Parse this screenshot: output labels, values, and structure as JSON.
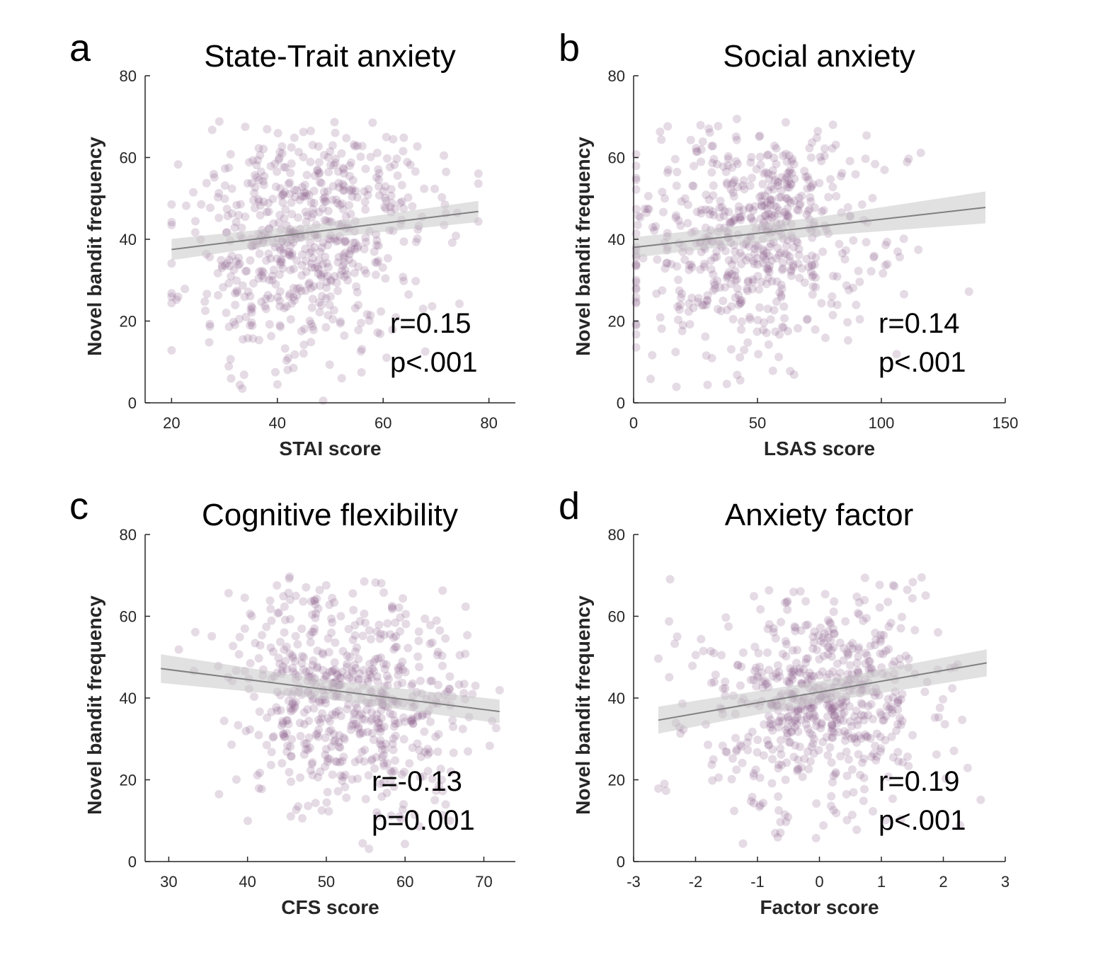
{
  "chart_data": [
    {
      "type": "scatter",
      "panel": "a",
      "title": "State-Trait anxiety",
      "xlabel": "STAI score",
      "ylabel": "Novel bandit frequency",
      "xlim": [
        15,
        85
      ],
      "ylim": [
        0,
        80
      ],
      "xticks": [
        20,
        40,
        60,
        80
      ],
      "yticks": [
        0,
        20,
        40,
        60,
        80
      ],
      "r_text": "r=0.15",
      "p_text": "p<.001",
      "fit": {
        "x": [
          20,
          78
        ],
        "y": [
          37.5,
          46.8
        ],
        "ci_halfwidth": [
          2.6,
          2.6
        ],
        "ci_mid": 0.7
      },
      "color": "#8a5a88",
      "points": {
        "n": 620,
        "x_mean": 46,
        "x_sd": 12,
        "x_range": [
          20,
          78
        ],
        "y_mean": 41,
        "y_sd": 14,
        "y_range": [
          0.5,
          70
        ],
        "slope": 0.16,
        "seed": 11
      }
    },
    {
      "type": "scatter",
      "panel": "b",
      "title": "Social anxiety",
      "xlabel": "LSAS score",
      "ylabel": "Novel bandit frequency",
      "xlim": [
        0,
        150
      ],
      "ylim": [
        0,
        80
      ],
      "xticks": [
        0,
        50,
        100,
        150
      ],
      "yticks": [
        0,
        20,
        40,
        60,
        80
      ],
      "r_text": "r=0.14",
      "p_text": "p<.001",
      "fit": {
        "x": [
          0,
          142
        ],
        "y": [
          38.0,
          47.8
        ],
        "ci_halfwidth": [
          2.5,
          3.9
        ],
        "ci_mid": 0.9
      },
      "color": "#8a5a88",
      "points": {
        "n": 620,
        "x_mean": 50,
        "x_sd": 25,
        "x_range": [
          1,
          142
        ],
        "y_mean": 41,
        "y_sd": 14,
        "y_range": [
          0.5,
          70
        ],
        "slope": 0.07,
        "seed": 23
      }
    },
    {
      "type": "scatter",
      "panel": "c",
      "title": "Cognitive flexibility",
      "xlabel": "CFS score",
      "ylabel": "Novel bandit frequency",
      "xlim": [
        27,
        74
      ],
      "ylim": [
        0,
        80
      ],
      "xticks": [
        30,
        40,
        50,
        60,
        70
      ],
      "yticks": [
        0,
        20,
        40,
        60,
        80
      ],
      "r_text": "r=-0.13",
      "p_text": "p=0.001",
      "fit": {
        "x": [
          29,
          72
        ],
        "y": [
          47.2,
          36.7
        ],
        "ci_halfwidth": [
          3.5,
          2.9
        ],
        "ci_mid": 0.8
      },
      "color": "#8a5a88",
      "points": {
        "n": 620,
        "x_mean": 53,
        "x_sd": 7,
        "x_range": [
          29,
          72
        ],
        "y_mean": 41,
        "y_sd": 14,
        "y_range": [
          1,
          70
        ],
        "slope": -0.24,
        "seed": 37
      }
    },
    {
      "type": "scatter",
      "panel": "d",
      "title": "Anxiety factor",
      "xlabel": "Factor score",
      "ylabel": "Novel bandit frequency",
      "xlim": [
        -3,
        3
      ],
      "ylim": [
        0,
        80
      ],
      "xticks": [
        -3,
        -2,
        -1,
        0,
        1,
        2,
        3
      ],
      "yticks": [
        0,
        20,
        40,
        60,
        80
      ],
      "r_text": "r=0.19",
      "p_text": "p<.001",
      "fit": {
        "x": [
          -2.6,
          2.7
        ],
        "y": [
          34.6,
          48.6
        ],
        "ci_halfwidth": [
          3.3,
          3.3
        ],
        "ci_mid": 0.8
      },
      "color": "#8a5a88",
      "points": {
        "n": 620,
        "x_mean": 0,
        "x_sd": 0.95,
        "x_range": [
          -2.6,
          2.7
        ],
        "y_mean": 41,
        "y_sd": 14,
        "y_range": [
          1,
          70
        ],
        "slope": 2.6,
        "seed": 53
      }
    }
  ]
}
